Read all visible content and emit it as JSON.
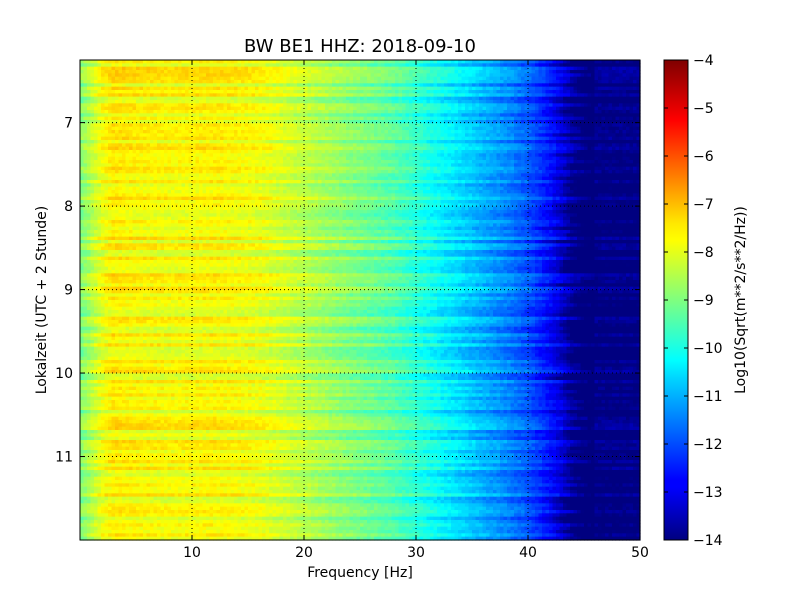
{
  "chart_data": {
    "type": "heatmap",
    "title": "BW BE1 HHZ: 2018-09-10",
    "xlabel": "Frequency [Hz]",
    "ylabel": "Lokalzeit (UTC + 2 Stunde)",
    "xlim": [
      0,
      50
    ],
    "ylim": [
      6.25,
      12.0
    ],
    "y_inverted": true,
    "x_ticks": [
      10,
      20,
      30,
      40,
      50
    ],
    "y_ticks": [
      7,
      8,
      9,
      10,
      11
    ],
    "grid": true,
    "grid_style": "dotted",
    "colormap": "jet",
    "colorbar": {
      "label": "Log10(Sqrt(m**2/s**2/Hz))",
      "range": [
        -14,
        -4
      ],
      "ticks": [
        -4,
        -5,
        -6,
        -7,
        -8,
        -9,
        -10,
        -11,
        -12,
        -13,
        -14
      ]
    },
    "spectral_profile": {
      "frequency_hz": [
        0,
        0.5,
        1,
        2,
        3,
        5,
        8,
        12,
        16,
        20,
        24,
        28,
        30,
        32,
        34,
        36,
        38,
        40,
        42,
        43,
        44,
        45,
        46,
        50
      ],
      "log10_amplitude": [
        -9.2,
        -8.8,
        -8.3,
        -7.9,
        -7.6,
        -7.7,
        -7.8,
        -7.7,
        -7.9,
        -8.4,
        -8.9,
        -9.4,
        -9.8,
        -10.2,
        -10.6,
        -11.0,
        -11.4,
        -11.9,
        -12.6,
        -13.0,
        -13.6,
        -13.9,
        -14.0,
        -14.0
      ]
    }
  }
}
